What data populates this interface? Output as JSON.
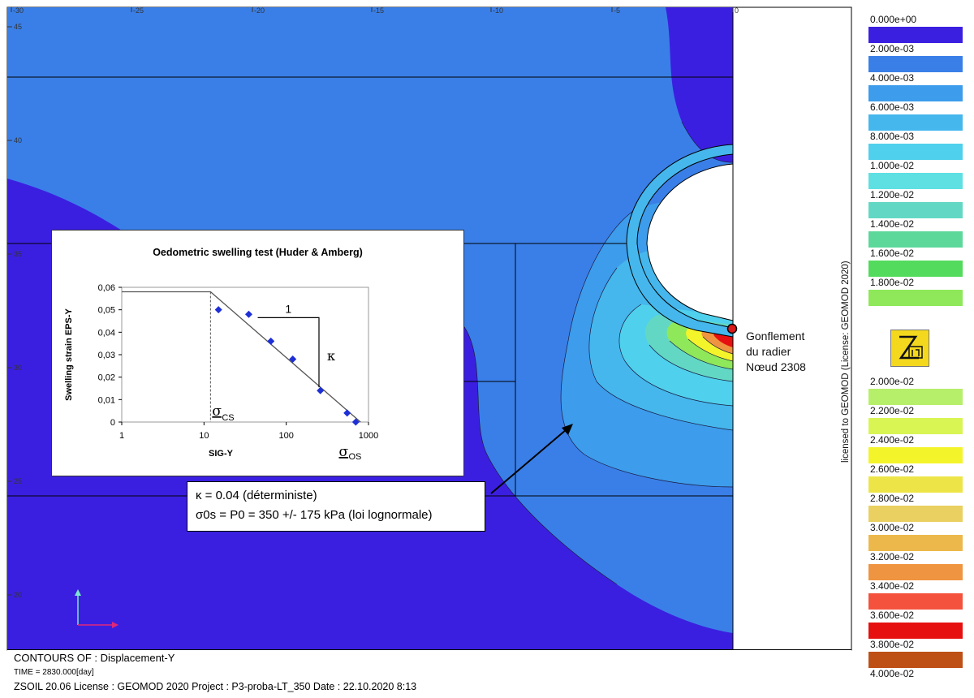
{
  "ruler": {
    "x_ticks": [
      "-30",
      "-25",
      "-20",
      "-15",
      "-10",
      "-5",
      "0"
    ],
    "y_ticks": [
      "45",
      "40",
      "35",
      "30",
      "25",
      "20"
    ]
  },
  "legend": {
    "entries": [
      {
        "label": "0.000e+00",
        "color": "#3b1fe0"
      },
      {
        "label": "2.000e-03",
        "color": "#3a7fe8"
      },
      {
        "label": "4.000e-03",
        "color": "#3d9ceb"
      },
      {
        "label": "6.000e-03",
        "color": "#45b7ec"
      },
      {
        "label": "8.000e-03",
        "color": "#4fd0ec"
      },
      {
        "label": "1.000e-02",
        "color": "#5ee0e2"
      },
      {
        "label": "1.200e-02",
        "color": "#62d8c4"
      },
      {
        "label": "1.400e-02",
        "color": "#5cd89a"
      },
      {
        "label": "1.600e-02",
        "color": "#52db5c"
      },
      {
        "label": "1.800e-02",
        "color": "#8ee85a"
      },
      {
        "label": "2.000e-02",
        "color": "#b6ef6a"
      },
      {
        "label": "2.200e-02",
        "color": "#d8f554"
      },
      {
        "label": "2.400e-02",
        "color": "#f4f42a"
      },
      {
        "label": "2.600e-02",
        "color": "#ede548"
      },
      {
        "label": "2.800e-02",
        "color": "#ead060"
      },
      {
        "label": "3.000e-02",
        "color": "#ecb84c"
      },
      {
        "label": "3.200e-02",
        "color": "#ef9440"
      },
      {
        "label": "3.400e-02",
        "color": "#f4523c"
      },
      {
        "label": "3.600e-02",
        "color": "#e61010"
      },
      {
        "label": "3.800e-02",
        "color": "#be5016"
      },
      {
        "label": "4.000e-02",
        "color": ""
      }
    ],
    "license": "licensed to GEOMOD (License: GEOMOD 2020)",
    "logo_icon": "zsoil-logo-icon"
  },
  "node": {
    "lines": [
      "Gonflement",
      "du radier",
      "Nœud 2308"
    ],
    "marker_color": "#d81a1a"
  },
  "inset": {
    "title": "Oedometric swelling test (Huder & Amberg)",
    "y_ticks": [
      "0,06",
      "0,05",
      "0,04",
      "0,03",
      "0,02",
      "0,01",
      "0"
    ],
    "x_ticks": [
      "1",
      "10",
      "100",
      "1000"
    ],
    "ylabel": "Swelling strain EPS-Y",
    "xlabel": "SIG-Y",
    "slope_run": "1",
    "slope_rise": "κ",
    "sigma_cs_main": "σ",
    "sigma_cs_sub": "CS",
    "sigma_os_main": "σ",
    "sigma_os_sub": "OS"
  },
  "chart_data": {
    "type": "scatter",
    "title": "Oedometric swelling test (Huder & Amberg)",
    "xlabel": "SIG-Y",
    "ylabel": "Swelling strain EPS-Y",
    "x_scale": "log",
    "xlim": [
      1,
      1000
    ],
    "ylim": [
      0,
      0.06
    ],
    "grid": false,
    "series": [
      {
        "x": [
          15,
          35,
          65,
          120,
          260,
          550,
          700
        ],
        "y": [
          0.05,
          0.048,
          0.036,
          0.028,
          0.014,
          0.004,
          0.0
        ]
      }
    ],
    "fit_line": {
      "x": [
        1,
        12,
        800
      ],
      "y": [
        0.058,
        0.058,
        0.0
      ]
    }
  },
  "callout": {
    "line1": "κ = 0.04 (déterministe)",
    "line2": "σ0s = P0 = 350 +/- 175 kPa (loi lognormale)"
  },
  "footer": {
    "contours": "CONTOURS OF : Displacement-Y",
    "time": "TIME = 2830.000[day]",
    "info": "ZSOIL 20.06   License :  GEOMOD 2020   Project : P3-proba-LT_350     Date : 22.10.2020   8:13"
  }
}
